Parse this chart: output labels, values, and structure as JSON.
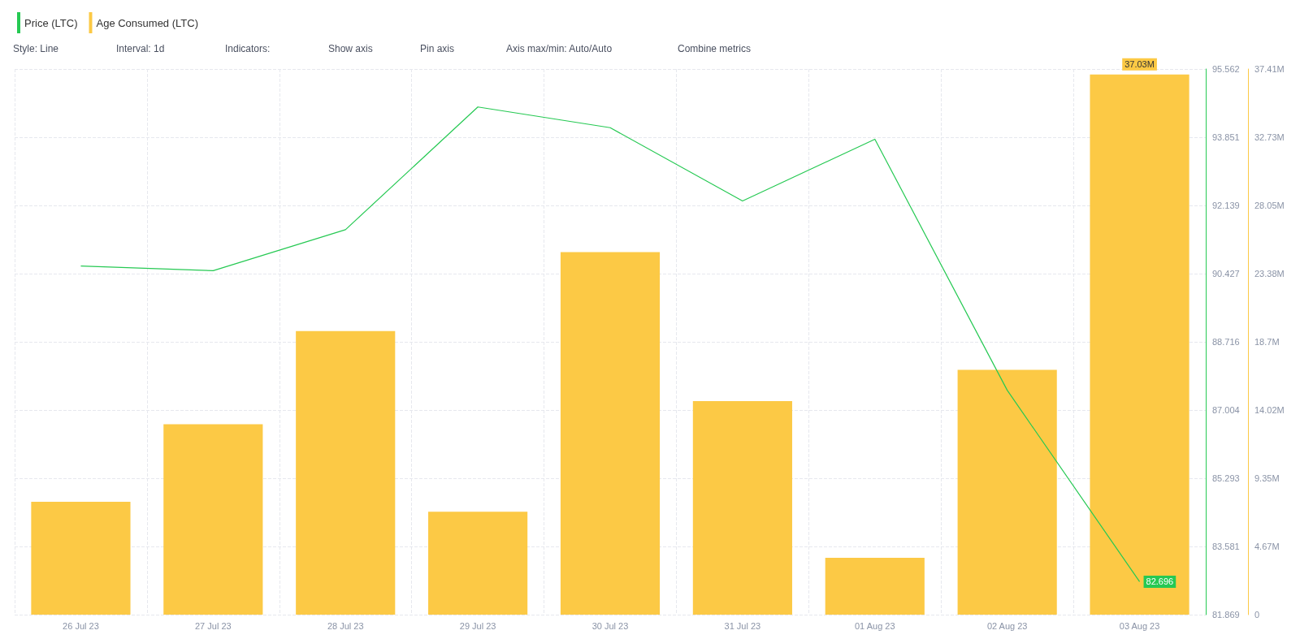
{
  "chart_data": {
    "type": "bar",
    "categories": [
      "26 Jul 23",
      "27 Jul 23",
      "28 Jul 23",
      "29 Jul 23",
      "30 Jul 23",
      "31 Jul 23",
      "01 Aug 23",
      "02 Aug 23",
      "03 Aug 23"
    ],
    "series": [
      {
        "name": "Price (LTC)",
        "type": "line",
        "color": "#26c953",
        "values": [
          90.62,
          90.5,
          91.53,
          94.61,
          94.09,
          92.25,
          93.8,
          87.5,
          82.696
        ],
        "value_labels": [
          null,
          null,
          null,
          null,
          null,
          null,
          null,
          null,
          "82.696"
        ]
      },
      {
        "name": "Age Consumed (LTC)",
        "axis": "y2",
        "color": "#fcc945",
        "values": [
          7.74,
          13.05,
          19.44,
          7.06,
          24.86,
          14.64,
          3.9,
          16.78,
          37.03
        ],
        "value_labels": [
          null,
          null,
          null,
          null,
          null,
          null,
          null,
          null,
          "37.03M"
        ]
      }
    ],
    "ylim": [
      81.869,
      95.562
    ],
    "yticks": [
      81.869,
      83.581,
      85.293,
      87.004,
      88.716,
      90.427,
      92.139,
      93.851,
      95.562
    ],
    "y2lim": [
      0,
      37.41
    ],
    "y2ticks": [
      0,
      {
        "value": 4.67,
        "label": "4.67M"
      },
      {
        "value": 9.35,
        "label": "9.35M"
      },
      {
        "value": 14.02,
        "label": "14.02M"
      },
      {
        "value": 18.7,
        "label": "18.7M"
      },
      {
        "value": 23.38,
        "label": "23.38M"
      },
      {
        "value": 28.05,
        "label": "28.05M"
      },
      {
        "value": 32.73,
        "label": "32.73M"
      },
      {
        "value": 37.41,
        "label": "37.41M"
      }
    ],
    "grid": true,
    "legend": "top left",
    "marker": "none",
    "line_style": "solid",
    "annotations": [
      "Style: Line",
      "Interval: 1d",
      "Indicators:",
      "Show axis",
      "Pin axis",
      "Axis max/min: Auto/Auto",
      "Combine metrics"
    ]
  }
}
